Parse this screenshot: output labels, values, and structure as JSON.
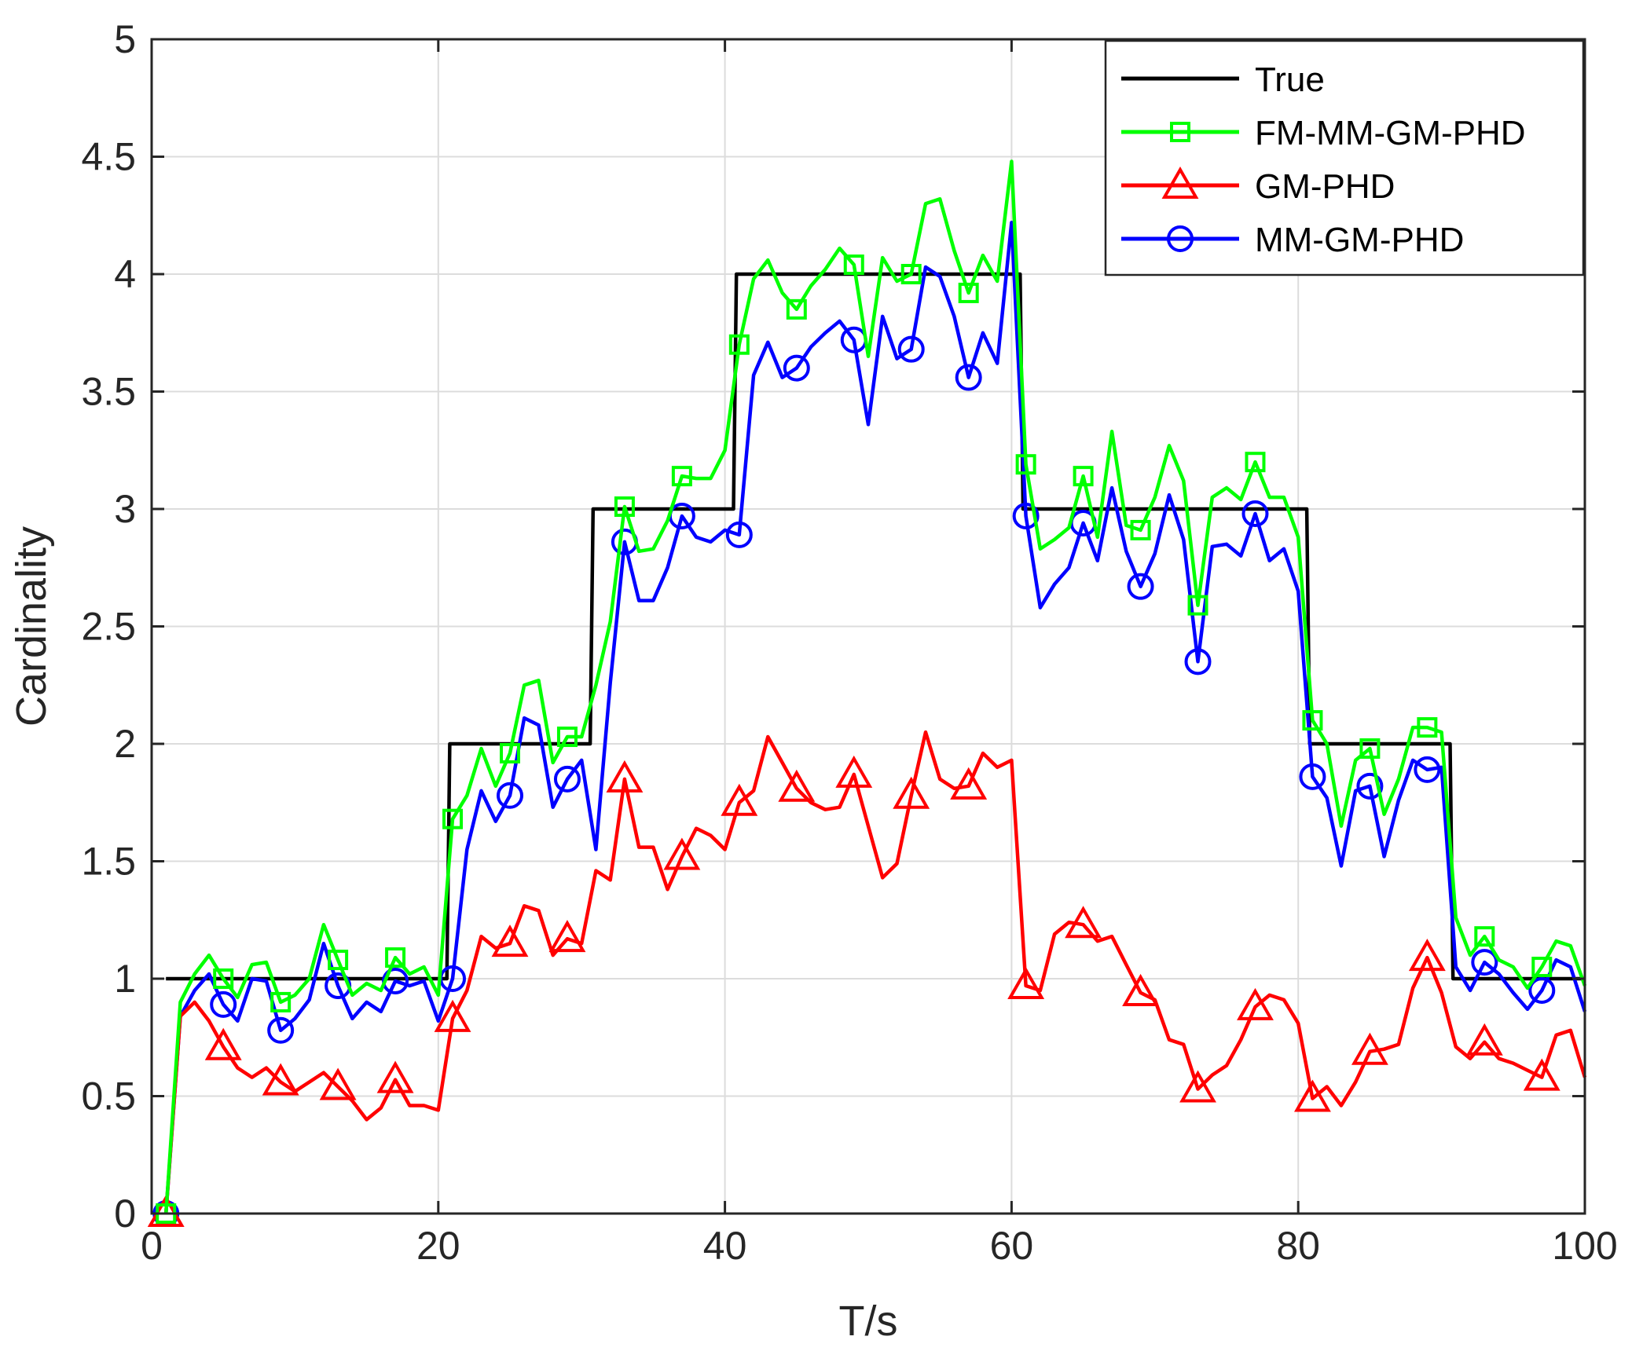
{
  "chart_data": {
    "type": "line",
    "title": "",
    "xlabel": "T/s",
    "ylabel": "Cardinality",
    "xlim": [
      0,
      100
    ],
    "ylim": [
      0,
      5
    ],
    "xticks": [
      0,
      20,
      40,
      60,
      80,
      100
    ],
    "yticks": [
      0,
      0.5,
      1,
      1.5,
      2,
      2.5,
      3,
      3.5,
      4,
      4.5,
      5
    ],
    "ytick_labels": [
      "0",
      "0.5",
      "1",
      "1.5",
      "2",
      "2.5",
      "3",
      "3.5",
      "4",
      "4.5",
      "5"
    ],
    "grid": true,
    "legend_position": "top-right",
    "series": [
      {
        "name": "True",
        "color": "#000000",
        "marker": "none",
        "x": [
          1,
          20.6,
          20.8,
          30.6,
          30.8,
          40.6,
          40.8,
          60.6,
          60.8,
          80.6,
          80.8,
          90.6,
          90.8,
          100
        ],
        "y": [
          1,
          1,
          2,
          2,
          3,
          3,
          4,
          4,
          3,
          3,
          2,
          2,
          1,
          1
        ]
      },
      {
        "name": "FM-MM-GM-PHD",
        "color": "#00ff00",
        "marker": "square",
        "marker_every": 4,
        "x": [
          1,
          2,
          3,
          4,
          5,
          6,
          7,
          8,
          9,
          10,
          11,
          12,
          13,
          14,
          15,
          16,
          17,
          18,
          19,
          20,
          21,
          22,
          23,
          24,
          25,
          26,
          27,
          28,
          29,
          30,
          31,
          32,
          33,
          34,
          35,
          36,
          37,
          38,
          39,
          40,
          41,
          42,
          43,
          44,
          45,
          46,
          47,
          48,
          49,
          50,
          51,
          52,
          53,
          54,
          55,
          56,
          57,
          58,
          59,
          60,
          61,
          62,
          63,
          64,
          65,
          66,
          67,
          68,
          69,
          70,
          71,
          72,
          73,
          74,
          75,
          76,
          77,
          78,
          79,
          80,
          81,
          82,
          83,
          84,
          85,
          86,
          87,
          88,
          89,
          90,
          91,
          92,
          93,
          94,
          95,
          96,
          97,
          98,
          99,
          100
        ],
        "y": [
          0,
          0.9,
          1.02,
          1.1,
          1.0,
          0.92,
          1.06,
          1.07,
          0.9,
          0.93,
          1.0,
          1.23,
          1.08,
          0.93,
          0.98,
          0.95,
          1.09,
          1.02,
          1.05,
          0.93,
          1.68,
          1.78,
          1.98,
          1.82,
          1.96,
          2.25,
          2.27,
          1.92,
          2.03,
          2.03,
          2.25,
          2.52,
          3.01,
          2.82,
          2.83,
          2.95,
          3.14,
          3.13,
          3.13,
          3.25,
          3.7,
          3.98,
          4.06,
          3.92,
          3.85,
          3.95,
          4.02,
          4.11,
          4.04,
          3.65,
          4.07,
          3.97,
          4.0,
          4.3,
          4.32,
          4.1,
          3.92,
          4.08,
          3.97,
          4.48,
          3.19,
          2.83,
          2.87,
          2.92,
          3.14,
          2.88,
          3.33,
          2.93,
          2.91,
          3.05,
          3.27,
          3.12,
          2.59,
          3.05,
          3.09,
          3.04,
          3.2,
          3.05,
          3.05,
          2.88,
          2.1,
          2.0,
          1.65,
          1.93,
          1.98,
          1.7,
          1.85,
          2.07,
          2.07,
          2.05,
          1.26,
          1.1,
          1.18,
          1.08,
          1.05,
          0.96,
          1.05,
          1.16,
          1.14,
          0.97
        ]
      },
      {
        "name": "GM-PHD",
        "color": "#ff0000",
        "marker": "triangle",
        "marker_every": 4,
        "x": [
          1,
          2,
          3,
          4,
          5,
          6,
          7,
          8,
          9,
          10,
          11,
          12,
          13,
          14,
          15,
          16,
          17,
          18,
          19,
          20,
          21,
          22,
          23,
          24,
          25,
          26,
          27,
          28,
          29,
          30,
          31,
          32,
          33,
          34,
          35,
          36,
          37,
          38,
          39,
          40,
          41,
          42,
          43,
          44,
          45,
          46,
          47,
          48,
          49,
          50,
          51,
          52,
          53,
          54,
          55,
          56,
          57,
          58,
          59,
          60,
          61,
          62,
          63,
          64,
          65,
          66,
          67,
          68,
          69,
          70,
          71,
          72,
          73,
          74,
          75,
          76,
          77,
          78,
          79,
          80,
          81,
          82,
          83,
          84,
          85,
          86,
          87,
          88,
          89,
          90,
          91,
          92,
          93,
          94,
          95,
          96,
          97,
          98,
          99,
          100
        ],
        "y": [
          0,
          0.84,
          0.9,
          0.82,
          0.71,
          0.62,
          0.58,
          0.62,
          0.56,
          0.52,
          0.56,
          0.6,
          0.54,
          0.48,
          0.4,
          0.45,
          0.57,
          0.46,
          0.46,
          0.44,
          0.83,
          0.95,
          1.18,
          1.13,
          1.15,
          1.31,
          1.29,
          1.1,
          1.17,
          1.15,
          1.46,
          1.42,
          1.85,
          1.56,
          1.56,
          1.38,
          1.52,
          1.64,
          1.61,
          1.55,
          1.75,
          1.8,
          2.03,
          1.92,
          1.81,
          1.75,
          1.72,
          1.73,
          1.87,
          1.65,
          1.43,
          1.49,
          1.78,
          2.05,
          1.85,
          1.81,
          1.82,
          1.96,
          1.9,
          1.93,
          0.97,
          0.95,
          1.19,
          1.24,
          1.23,
          1.16,
          1.18,
          1.06,
          0.94,
          0.91,
          0.74,
          0.72,
          0.53,
          0.59,
          0.63,
          0.74,
          0.88,
          0.93,
          0.91,
          0.81,
          0.49,
          0.54,
          0.46,
          0.56,
          0.69,
          0.7,
          0.72,
          0.96,
          1.09,
          0.94,
          0.71,
          0.66,
          0.73,
          0.66,
          0.64,
          0.61,
          0.58,
          0.76,
          0.78,
          0.58
        ]
      },
      {
        "name": "MM-GM-PHD",
        "color": "#0000ff",
        "marker": "circle",
        "marker_every": 4,
        "x": [
          1,
          2,
          3,
          4,
          5,
          6,
          7,
          8,
          9,
          10,
          11,
          12,
          13,
          14,
          15,
          16,
          17,
          18,
          19,
          20,
          21,
          22,
          23,
          24,
          25,
          26,
          27,
          28,
          29,
          30,
          31,
          32,
          33,
          34,
          35,
          36,
          37,
          38,
          39,
          40,
          41,
          42,
          43,
          44,
          45,
          46,
          47,
          48,
          49,
          50,
          51,
          52,
          53,
          54,
          55,
          56,
          57,
          58,
          59,
          60,
          61,
          62,
          63,
          64,
          65,
          66,
          67,
          68,
          69,
          70,
          71,
          72,
          73,
          74,
          75,
          76,
          77,
          78,
          79,
          80,
          81,
          82,
          83,
          84,
          85,
          86,
          87,
          88,
          89,
          90,
          91,
          92,
          93,
          94,
          95,
          96,
          97,
          98,
          99,
          100
        ],
        "y": [
          0,
          0.84,
          0.95,
          1.02,
          0.89,
          0.82,
          1.0,
          0.99,
          0.78,
          0.83,
          0.91,
          1.15,
          0.97,
          0.83,
          0.9,
          0.86,
          0.99,
          0.97,
          0.99,
          0.82,
          1.0,
          1.55,
          1.8,
          1.67,
          1.78,
          2.11,
          2.08,
          1.73,
          1.85,
          1.93,
          1.55,
          2.26,
          2.86,
          2.61,
          2.61,
          2.75,
          2.97,
          2.88,
          2.86,
          2.91,
          2.89,
          3.57,
          3.71,
          3.56,
          3.6,
          3.69,
          3.75,
          3.8,
          3.72,
          3.36,
          3.82,
          3.64,
          3.68,
          4.03,
          3.99,
          3.82,
          3.56,
          3.75,
          3.62,
          4.22,
          2.97,
          2.58,
          2.68,
          2.75,
          2.94,
          2.78,
          3.09,
          2.82,
          2.67,
          2.81,
          3.06,
          2.87,
          2.35,
          2.84,
          2.85,
          2.8,
          2.98,
          2.78,
          2.83,
          2.65,
          1.86,
          1.77,
          1.48,
          1.8,
          1.82,
          1.52,
          1.76,
          1.93,
          1.89,
          1.9,
          1.05,
          0.95,
          1.07,
          1.02,
          0.94,
          0.87,
          0.95,
          1.08,
          1.05,
          0.86
        ]
      }
    ]
  }
}
